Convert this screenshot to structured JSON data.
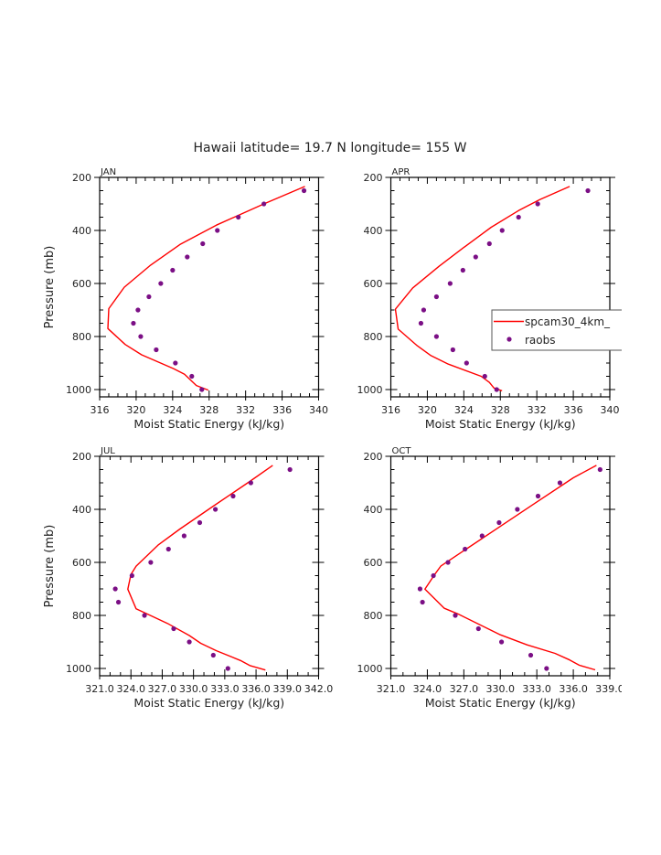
{
  "figure": {
    "title": "Hawaii  latitude= 19.7 N longitude= 155 W"
  },
  "colors": {
    "model_line": "#ff0000",
    "obs_marker": "#7b0f85",
    "axes": "#000000",
    "text": "#222222"
  },
  "legend": {
    "entries": [
      {
        "label": "spcam30_4km_",
        "type": "line"
      },
      {
        "label": "raobs",
        "type": "marker"
      }
    ],
    "placement": "right, APR panel"
  },
  "chart_data": [
    {
      "type": "line",
      "panel": "JAN",
      "title": "JAN",
      "xlabel": "Moist Static Energy (kJ/kg)",
      "ylabel": "Pressure (mb)",
      "xlim": [
        316,
        340
      ],
      "ylim": [
        200,
        1027
      ],
      "y_inverted": true,
      "xticks": [
        316,
        320,
        324,
        328,
        332,
        336,
        340
      ],
      "xtick_labels": [
        "316",
        "320",
        "324",
        "328",
        "332",
        "336",
        "340"
      ],
      "x_minor_step": 1,
      "yticks": [
        200,
        400,
        600,
        800,
        1000
      ],
      "ytick_labels": [
        "200",
        "400",
        "600",
        "800",
        "1000"
      ],
      "y_minor_step": 50,
      "show_ylabel": true,
      "series": [
        {
          "name": "spcam30_4km_",
          "kind": "line",
          "x": [
            338.5,
            334.0,
            331.2,
            328.8,
            324.8,
            321.5,
            318.7,
            317.0,
            316.9,
            318.8,
            320.6,
            324.1,
            325.3,
            326.6,
            327.9
          ],
          "y": [
            234,
            300,
            343,
            380,
            453,
            533,
            614,
            695,
            770,
            830,
            869,
            921,
            942,
            985,
            1002
          ]
        },
        {
          "name": "raobs",
          "kind": "scatter",
          "x": [
            338.4,
            334.0,
            331.2,
            328.9,
            327.3,
            325.6,
            324.0,
            322.7,
            321.4,
            320.2,
            319.7,
            320.5,
            322.2,
            324.3,
            326.1,
            327.2
          ],
          "y": [
            250,
            300,
            350,
            400,
            450,
            500,
            550,
            600,
            650,
            700,
            750,
            800,
            850,
            900,
            950,
            1000
          ]
        }
      ]
    },
    {
      "type": "line",
      "panel": "APR",
      "title": "APR",
      "xlabel": "Moist Static Energy (kJ/kg)",
      "ylabel": "",
      "xlim": [
        316,
        340
      ],
      "ylim": [
        200,
        1027
      ],
      "y_inverted": true,
      "xticks": [
        316,
        320,
        324,
        328,
        332,
        336,
        340
      ],
      "xtick_labels": [
        "316",
        "320",
        "324",
        "328",
        "332",
        "336",
        "340"
      ],
      "x_minor_step": 1,
      "yticks": [
        200,
        400,
        600,
        800,
        1000
      ],
      "ytick_labels": [
        "200",
        "400",
        "600",
        "800",
        "1000"
      ],
      "y_minor_step": 50,
      "show_ylabel": false,
      "series": [
        {
          "name": "spcam30_4km_",
          "kind": "line",
          "x": [
            335.6,
            332.3,
            330.0,
            327.0,
            324.0,
            321.3,
            318.4,
            316.5,
            316.8,
            318.9,
            320.4,
            322.3,
            325.9,
            326.8,
            327.3,
            328.2
          ],
          "y": [
            234,
            284,
            325,
            388,
            464,
            535,
            617,
            697,
            772,
            835,
            872,
            904,
            950,
            973,
            994,
            1005
          ]
        },
        {
          "name": "raobs",
          "kind": "scatter",
          "x": [
            337.6,
            332.1,
            330.0,
            328.2,
            326.8,
            325.3,
            323.9,
            322.5,
            321.0,
            319.6,
            319.3,
            321.0,
            322.8,
            324.3,
            326.3,
            327.6
          ],
          "y": [
            250,
            300,
            350,
            400,
            450,
            500,
            550,
            600,
            650,
            700,
            750,
            800,
            850,
            900,
            950,
            1000
          ]
        }
      ]
    },
    {
      "type": "line",
      "panel": "JUL",
      "title": "JUL",
      "xlabel": "Moist Static Energy (kJ/kg)",
      "ylabel": "Pressure (mb)",
      "xlim": [
        321,
        342
      ],
      "ylim": [
        200,
        1027
      ],
      "y_inverted": true,
      "xticks": [
        321,
        324,
        327,
        330,
        333,
        336,
        339,
        342
      ],
      "xtick_labels": [
        "321.0",
        "324.0",
        "327.0",
        "330.0",
        "333.0",
        "336.0",
        "339.0",
        "342.0"
      ],
      "x_minor_step": 1,
      "yticks": [
        200,
        400,
        600,
        800,
        1000
      ],
      "ytick_labels": [
        "200",
        "400",
        "600",
        "800",
        "1000"
      ],
      "y_minor_step": 50,
      "show_ylabel": true,
      "series": [
        {
          "name": "spcam30_4km_",
          "kind": "line",
          "x": [
            337.6,
            335.4,
            331.9,
            328.7,
            326.6,
            324.5,
            324.0,
            323.7,
            324.5,
            327.5,
            329.6,
            330.7,
            332.2,
            334.5,
            335.4,
            336.9
          ],
          "y": [
            234,
            295,
            388,
            474,
            535,
            614,
            646,
            701,
            775,
            830,
            876,
            905,
            933,
            970,
            989,
            1006
          ]
        },
        {
          "name": "raobs",
          "kind": "scatter",
          "x": [
            339.25,
            335.5,
            333.8,
            332.1,
            330.6,
            329.1,
            327.6,
            325.9,
            324.1,
            322.5,
            322.8,
            325.3,
            328.1,
            329.6,
            331.9,
            333.3
          ],
          "y": [
            250,
            300,
            350,
            400,
            450,
            500,
            550,
            600,
            650,
            700,
            750,
            800,
            850,
            900,
            950,
            1000
          ]
        }
      ]
    },
    {
      "type": "line",
      "panel": "OCT",
      "title": "OCT",
      "xlabel": "Moist Static Energy (kJ/kg)",
      "ylabel": "",
      "xlim": [
        321,
        339
      ],
      "ylim": [
        200,
        1027
      ],
      "y_inverted": true,
      "xticks": [
        321,
        324,
        327,
        330,
        333,
        336,
        339
      ],
      "xtick_labels": [
        "321.0",
        "324.0",
        "327.0",
        "330.0",
        "333.0",
        "336.0",
        "339.0"
      ],
      "x_minor_step": 1,
      "yticks": [
        200,
        400,
        600,
        800,
        1000
      ],
      "ytick_labels": [
        "200",
        "400",
        "600",
        "800",
        "1000"
      ],
      "y_minor_step": 50,
      "show_ylabel": false,
      "series": [
        {
          "name": "spcam30_4km_",
          "kind": "line",
          "x": [
            337.9,
            336.0,
            333.0,
            330.0,
            327.0,
            325.1,
            324.6,
            323.8,
            325.4,
            326.5,
            330.0,
            332.2,
            334.5,
            335.7,
            336.5,
            337.8
          ],
          "y": [
            234,
            281,
            372,
            464,
            556,
            614,
            646,
            701,
            773,
            794,
            873,
            911,
            943,
            968,
            988,
            1005
          ]
        },
        {
          "name": "raobs",
          "kind": "scatter",
          "x": [
            338.2,
            334.9,
            333.1,
            331.4,
            329.9,
            328.5,
            327.1,
            325.7,
            324.5,
            323.4,
            323.6,
            326.3,
            328.2,
            330.1,
            332.5,
            333.8
          ],
          "y": [
            250,
            300,
            350,
            400,
            450,
            500,
            550,
            600,
            650,
            700,
            750,
            800,
            850,
            900,
            950,
            1000
          ]
        }
      ]
    }
  ]
}
